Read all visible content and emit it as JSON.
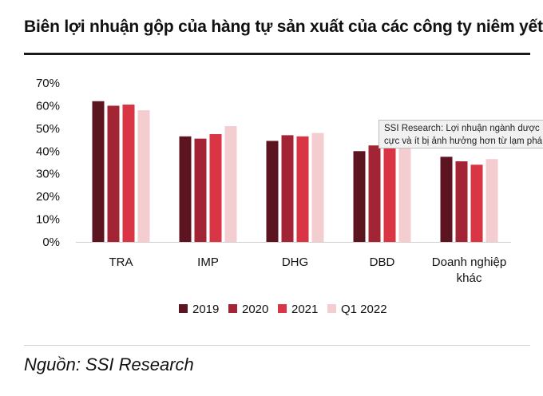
{
  "title": "Biên lợi nhuận gộp của hàng tự sản xuất của các công ty niêm yết",
  "source": "Nguồn: SSI Research",
  "tooltip": {
    "line1": "SSI Research: Lợi nhuận ngành dược",
    "line2": "cực và ít bị ảnh hưởng hơn từ lạm phá"
  },
  "chart_data": {
    "type": "bar",
    "title": "Biên lợi nhuận gộp của hàng tự sản xuất của các công ty niêm yết",
    "categories": [
      "TRA",
      "IMP",
      "DHG",
      "DBD",
      "Doanh nghiệp khác"
    ],
    "category_lines": [
      [
        "TRA"
      ],
      [
        "IMP"
      ],
      [
        "DHG"
      ],
      [
        "DBD"
      ],
      [
        "Doanh nghiệp",
        "khác"
      ]
    ],
    "yticks": [
      "0%",
      "10%",
      "20%",
      "30%",
      "40%",
      "50%",
      "60%",
      "70%"
    ],
    "ylim": [
      0,
      70
    ],
    "legend_position": "bottom",
    "grid": false,
    "series": [
      {
        "name": "2019",
        "color": "#5c1520",
        "values": [
          62,
          46.5,
          44.5,
          40,
          37.5
        ]
      },
      {
        "name": "2020",
        "color": "#a32434",
        "values": [
          60,
          45.5,
          47,
          42.5,
          35.5
        ]
      },
      {
        "name": "2021",
        "color": "#d93545",
        "values": [
          60.5,
          47.5,
          46.5,
          46,
          34
        ]
      },
      {
        "name": "Q1 2022",
        "color": "#f4cdd1",
        "values": [
          58,
          51,
          48,
          44,
          36.5
        ]
      }
    ]
  }
}
